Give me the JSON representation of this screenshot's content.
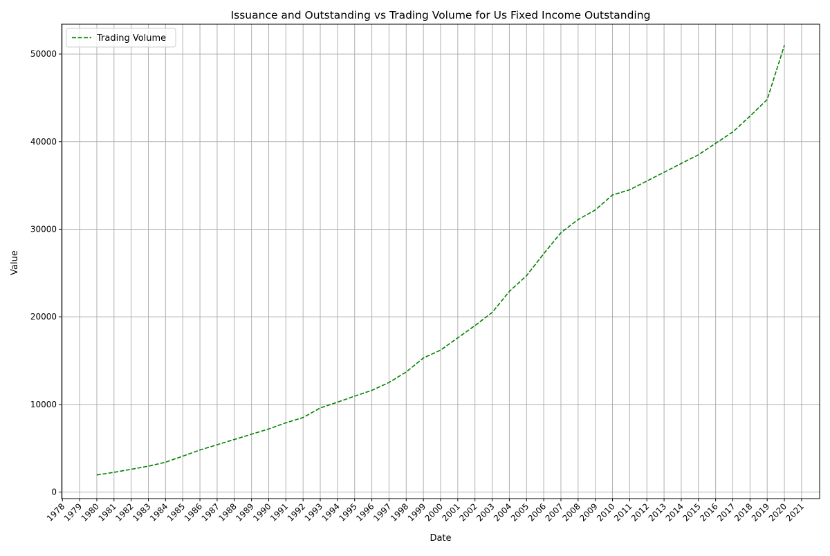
{
  "chart_data": {
    "type": "line",
    "title": "Issuance and Outstanding vs Trading Volume for Us Fixed Income Outstanding",
    "xlabel": "Date",
    "ylabel": "Value",
    "x_ticks": [
      "1978",
      "1979",
      "1980",
      "1981",
      "1982",
      "1983",
      "1984",
      "1985",
      "1986",
      "1987",
      "1988",
      "1989",
      "1990",
      "1991",
      "1992",
      "1993",
      "1994",
      "1995",
      "1996",
      "1997",
      "1998",
      "1999",
      "2000",
      "2001",
      "2002",
      "2003",
      "2004",
      "2005",
      "2006",
      "2007",
      "2008",
      "2009",
      "2010",
      "2011",
      "2012",
      "2013",
      "2014",
      "2015",
      "2016",
      "2017",
      "2018",
      "2019",
      "2020",
      "2021"
    ],
    "y_ticks": [
      0,
      10000,
      20000,
      30000,
      40000,
      50000
    ],
    "xlim": [
      1977.95,
      2022.05
    ],
    "ylim": [
      -750,
      53400
    ],
    "grid": true,
    "legend_position": "top-left",
    "series": [
      {
        "name": "Trading Volume",
        "color": "#008000",
        "line_style": "dashed",
        "x": [
          1980,
          1981,
          1982,
          1983,
          1984,
          1985,
          1986,
          1987,
          1988,
          1989,
          1990,
          1991,
          1992,
          1993,
          1994,
          1995,
          1996,
          1997,
          1998,
          1999,
          2000,
          2001,
          2002,
          2003,
          2004,
          2005,
          2006,
          2007,
          2008,
          2009,
          2010,
          2011,
          2012,
          2013,
          2014,
          2015,
          2016,
          2017,
          2018,
          2019,
          2020
        ],
        "values": [
          1950,
          2250,
          2600,
          2950,
          3400,
          4100,
          4800,
          5400,
          6000,
          6600,
          7200,
          7900,
          8500,
          9600,
          10250,
          10950,
          11600,
          12500,
          13700,
          15300,
          16200,
          17600,
          19000,
          20500,
          22900,
          24700,
          27200,
          29600,
          31100,
          32200,
          33900,
          34500,
          35500,
          36500,
          37500,
          38500,
          39800,
          41100,
          42900,
          44800,
          51000
        ]
      }
    ]
  }
}
